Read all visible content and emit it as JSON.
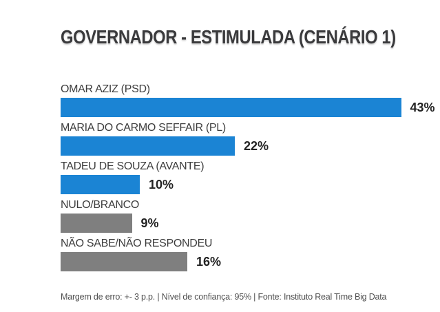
{
  "title": "GOVERNADOR - ESTIMULADA (CENÁRIO 1)",
  "footer": "Margem de erro: +- 3 p.p. | Nível de confiança: 95% | Fonte: Instituto Real Time Big Data",
  "colors": {
    "candidate_bar": "#1b84d4",
    "neutral_bar": "#7f7f7f",
    "title_text": "#3a3a3c",
    "label_text": "#3d3d3d",
    "value_text": "#232323",
    "footer_text": "#4f4f4f",
    "background": "#ffffff"
  },
  "chart_data": {
    "type": "bar",
    "orientation": "horizontal",
    "title": "GOVERNADOR - ESTIMULADA (CENÁRIO 1)",
    "categories": [
      "OMAR AZIZ (PSD)",
      "MARIA DO CARMO SEFFAIR (PL)",
      "TADEU DE SOUZA (AVANTE)",
      "NULO/BRANCO",
      "NÃO SABE/NÃO RESPONDEU"
    ],
    "values": [
      43,
      22,
      10,
      9,
      16
    ],
    "value_labels": [
      "43%",
      "22%",
      "10%",
      "9%",
      "16%"
    ],
    "bar_colors": [
      "#1b84d4",
      "#1b84d4",
      "#1b84d4",
      "#7f7f7f",
      "#7f7f7f"
    ],
    "unit": "%",
    "xlim": [
      0,
      47
    ],
    "grid": false,
    "legend": false,
    "value_label_position": "outside-right",
    "source_note": "Margem de erro: +- 3 p.p. | Nível de confiança: 95% | Fonte: Instituto Real Time Big Data"
  }
}
